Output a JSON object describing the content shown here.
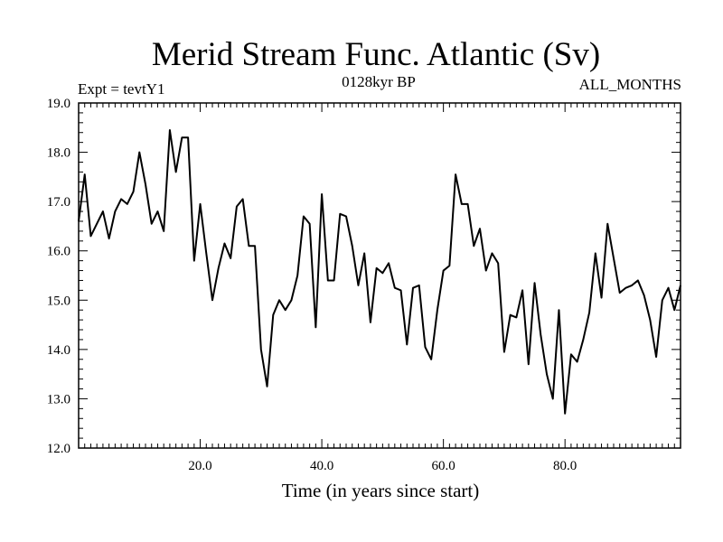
{
  "chart_data": {
    "type": "line",
    "title": "Merid Stream Func. Atlantic (Sv)",
    "subtitle_left": "Expt = tevtY1",
    "subtitle_center": "0128kyr BP",
    "subtitle_right": "ALL_MONTHS",
    "xlabel": "Time (in years since start)",
    "ylabel": "",
    "xlim": [
      0,
      99
    ],
    "ylim": [
      12.0,
      19.0
    ],
    "xticks": [
      20,
      40,
      60,
      80
    ],
    "xtick_labels": [
      "20.0",
      "40.0",
      "60.0",
      "80.0"
    ],
    "yticks": [
      12,
      13,
      14,
      15,
      16,
      17,
      18,
      19
    ],
    "ytick_labels": [
      "12.0",
      "13.0",
      "14.0",
      "15.0",
      "16.0",
      "17.0",
      "18.0",
      "19.0"
    ],
    "grid": false,
    "series": [
      {
        "name": "Merid Stream Func. Atlantic",
        "x": [
          0,
          1,
          2,
          3,
          4,
          5,
          6,
          7,
          8,
          9,
          10,
          11,
          12,
          13,
          14,
          15,
          16,
          17,
          18,
          19,
          20,
          21,
          22,
          23,
          24,
          25,
          26,
          27,
          28,
          29,
          30,
          31,
          32,
          33,
          34,
          35,
          36,
          37,
          38,
          39,
          40,
          41,
          42,
          43,
          44,
          45,
          46,
          47,
          48,
          49,
          50,
          51,
          52,
          53,
          54,
          55,
          56,
          57,
          58,
          59,
          60,
          61,
          62,
          63,
          64,
          65,
          66,
          67,
          68,
          69,
          70,
          71,
          72,
          73,
          74,
          75,
          76,
          77,
          78,
          79,
          80,
          81,
          82,
          83,
          84,
          85,
          86,
          87,
          88,
          89,
          90,
          91,
          92,
          93,
          94,
          95,
          96,
          97,
          98,
          99
        ],
        "values": [
          16.6,
          17.55,
          16.3,
          16.55,
          16.8,
          16.25,
          16.8,
          17.05,
          16.95,
          17.2,
          18.0,
          17.35,
          16.55,
          16.8,
          16.4,
          18.45,
          17.6,
          18.3,
          18.3,
          15.8,
          16.95,
          15.95,
          15.0,
          15.65,
          16.15,
          15.85,
          16.9,
          17.05,
          16.1,
          16.1,
          14.0,
          13.25,
          14.7,
          15.0,
          14.8,
          15.0,
          15.5,
          16.7,
          16.55,
          14.45,
          17.15,
          15.4,
          15.4,
          16.75,
          16.7,
          16.1,
          15.3,
          15.95,
          14.55,
          15.65,
          15.55,
          15.75,
          15.25,
          15.2,
          14.1,
          15.25,
          15.3,
          14.05,
          13.8,
          14.8,
          15.6,
          15.7,
          17.55,
          16.95,
          16.95,
          16.1,
          16.45,
          15.6,
          15.95,
          15.75,
          13.95,
          14.7,
          14.65,
          15.2,
          13.7,
          15.35,
          14.3,
          13.5,
          13.0,
          14.8,
          12.7,
          13.9,
          13.75,
          14.2,
          14.75,
          15.95,
          15.05,
          16.55,
          15.85,
          15.15,
          15.25,
          15.3,
          15.4,
          15.1,
          14.6,
          13.85,
          15.0,
          15.25,
          14.8,
          15.3
        ]
      }
    ]
  }
}
